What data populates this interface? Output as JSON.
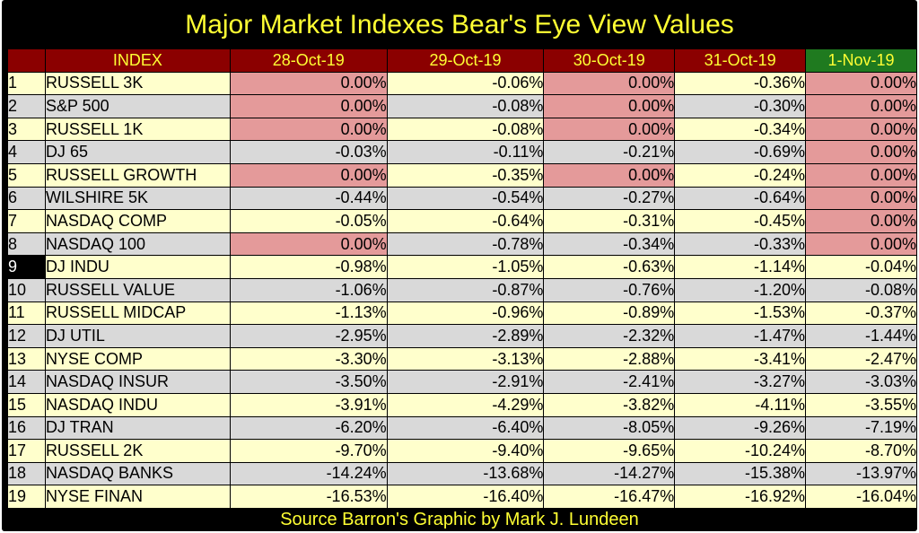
{
  "title": "Major Market Indexes Bear's Eye View Values",
  "footer": "Source Barron's   Graphic by Mark J. Lundeen",
  "colors": {
    "background": "#000000",
    "title_text": "#ffff33",
    "header_bg": "#8b0000",
    "header_bg_latest": "#1f7a1f",
    "row_odd": "#ffffcc",
    "row_even": "#d9d9d9",
    "zero_highlight": "#e49a9a"
  },
  "chart_data": {
    "type": "table",
    "title": "Major Market Indexes Bear's Eye View Values",
    "index_header": "INDEX",
    "columns": [
      "28-Oct-19",
      "29-Oct-19",
      "30-Oct-19",
      "31-Oct-19",
      "1-Nov-19"
    ],
    "highlighted_column": "1-Nov-19",
    "highlighted_rank": "9",
    "rows": [
      {
        "rank": "1",
        "name": "RUSSELL 3K",
        "values": [
          "0.00%",
          "-0.06%",
          "0.00%",
          "-0.36%",
          "0.00%"
        ]
      },
      {
        "rank": "2",
        "name": "S&P 500",
        "values": [
          "0.00%",
          "-0.08%",
          "0.00%",
          "-0.30%",
          "0.00%"
        ]
      },
      {
        "rank": "3",
        "name": "RUSSELL 1K",
        "values": [
          "0.00%",
          "-0.08%",
          "0.00%",
          "-0.34%",
          "0.00%"
        ]
      },
      {
        "rank": "4",
        "name": "DJ  65",
        "values": [
          "-0.03%",
          "-0.11%",
          "-0.21%",
          "-0.69%",
          "0.00%"
        ]
      },
      {
        "rank": "5",
        "name": "RUSSELL GROWTH",
        "values": [
          "0.00%",
          "-0.35%",
          "0.00%",
          "-0.24%",
          "0.00%"
        ]
      },
      {
        "rank": "6",
        "name": "WILSHIRE 5K",
        "values": [
          "-0.44%",
          "-0.54%",
          "-0.27%",
          "-0.64%",
          "0.00%"
        ]
      },
      {
        "rank": "7",
        "name": "NASDAQ COMP",
        "values": [
          "-0.05%",
          "-0.64%",
          "-0.31%",
          "-0.45%",
          "0.00%"
        ]
      },
      {
        "rank": "8",
        "name": "NASDAQ 100",
        "values": [
          "0.00%",
          "-0.78%",
          "-0.34%",
          "-0.33%",
          "0.00%"
        ]
      },
      {
        "rank": "9",
        "name": "DJ  INDU",
        "values": [
          "-0.98%",
          "-1.05%",
          "-0.63%",
          "-1.14%",
          "-0.04%"
        ]
      },
      {
        "rank": "10",
        "name": "RUSSELL VALUE",
        "values": [
          "-1.06%",
          "-0.87%",
          "-0.76%",
          "-1.20%",
          "-0.08%"
        ]
      },
      {
        "rank": "11",
        "name": "RUSSELL MIDCAP",
        "values": [
          "-1.13%",
          "-0.96%",
          "-0.89%",
          "-1.53%",
          "-0.37%"
        ]
      },
      {
        "rank": "12",
        "name": "DJ  UTIL",
        "values": [
          "-2.95%",
          "-2.89%",
          "-2.32%",
          "-1.47%",
          "-1.44%"
        ]
      },
      {
        "rank": "13",
        "name": "NYSE COMP",
        "values": [
          "-3.30%",
          "-3.13%",
          "-2.88%",
          "-3.41%",
          "-2.47%"
        ]
      },
      {
        "rank": "14",
        "name": "NASDAQ INSUR",
        "values": [
          "-3.50%",
          "-2.91%",
          "-2.41%",
          "-3.27%",
          "-3.03%"
        ]
      },
      {
        "rank": "15",
        "name": "NASDAQ INDU",
        "values": [
          "-3.91%",
          "-4.29%",
          "-3.82%",
          "-4.11%",
          "-3.55%"
        ]
      },
      {
        "rank": "16",
        "name": "DJ  TRAN",
        "values": [
          "-6.20%",
          "-6.40%",
          "-8.05%",
          "-9.26%",
          "-7.19%"
        ]
      },
      {
        "rank": "17",
        "name": "RUSSELL 2K",
        "values": [
          "-9.70%",
          "-9.40%",
          "-9.65%",
          "-10.24%",
          "-8.70%"
        ]
      },
      {
        "rank": "18",
        "name": "NASDAQ BANKS",
        "values": [
          "-14.24%",
          "-13.68%",
          "-14.27%",
          "-15.38%",
          "-13.97%"
        ]
      },
      {
        "rank": "19",
        "name": "NYSE FINAN",
        "values": [
          "-16.53%",
          "-16.40%",
          "-16.47%",
          "-16.92%",
          "-16.04%"
        ]
      }
    ]
  }
}
